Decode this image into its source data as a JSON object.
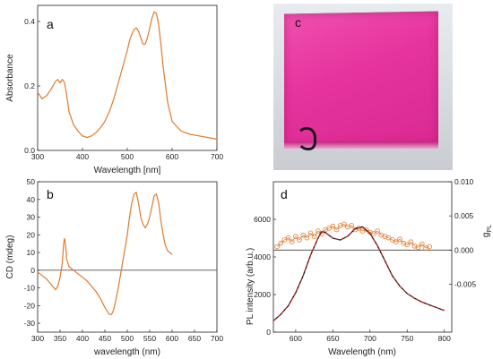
{
  "panels": {
    "a": {
      "label": "a"
    },
    "b": {
      "label": "b"
    },
    "c": {
      "label": "c"
    },
    "d": {
      "label": "d"
    }
  },
  "colors": {
    "curve": "#e07a2c",
    "pl_fit": "#d62020",
    "pl_data": "#111111",
    "zero_line": "#555555",
    "photo_film": "#e6339d"
  },
  "chart_data": [
    {
      "id": "a",
      "type": "line",
      "xlabel": "Wavelength [nm]",
      "ylabel": "Absorbance",
      "xlim": [
        300,
        700
      ],
      "ylim": [
        0.0,
        0.45
      ],
      "xticks": [
        300,
        400,
        500,
        600,
        700
      ],
      "yticks": [
        0.0,
        0.2,
        0.4
      ],
      "ytick_labels": [
        "0.0",
        "0.2",
        "0.4"
      ],
      "x": [
        300,
        310,
        320,
        330,
        340,
        345,
        350,
        355,
        360,
        365,
        370,
        380,
        390,
        400,
        410,
        420,
        430,
        440,
        450,
        460,
        470,
        480,
        490,
        500,
        505,
        510,
        515,
        520,
        525,
        530,
        535,
        540,
        545,
        550,
        555,
        560,
        565,
        570,
        575,
        580,
        590,
        600,
        620,
        640,
        660,
        680,
        700
      ],
      "y": [
        0.18,
        0.16,
        0.17,
        0.19,
        0.215,
        0.22,
        0.21,
        0.22,
        0.21,
        0.17,
        0.12,
        0.08,
        0.06,
        0.045,
        0.04,
        0.045,
        0.055,
        0.07,
        0.09,
        0.12,
        0.16,
        0.21,
        0.26,
        0.31,
        0.34,
        0.36,
        0.375,
        0.38,
        0.37,
        0.35,
        0.33,
        0.33,
        0.35,
        0.38,
        0.41,
        0.43,
        0.425,
        0.39,
        0.33,
        0.26,
        0.15,
        0.09,
        0.06,
        0.05,
        0.045,
        0.04,
        0.035
      ]
    },
    {
      "id": "b",
      "type": "line",
      "xlabel": "wavelength (nm)",
      "ylabel": "CD (mdeg)",
      "xlim": [
        300,
        700
      ],
      "ylim": [
        -35,
        50
      ],
      "xticks": [
        300,
        350,
        400,
        450,
        500,
        550,
        600,
        650,
        700
      ],
      "yticks": [
        -30,
        -20,
        -10,
        0,
        10,
        20,
        30,
        40,
        50
      ],
      "x": [
        300,
        310,
        320,
        330,
        340,
        345,
        350,
        355,
        358,
        360,
        362,
        365,
        370,
        380,
        390,
        400,
        410,
        420,
        430,
        440,
        450,
        460,
        465,
        470,
        480,
        490,
        500,
        505,
        510,
        515,
        520,
        525,
        530,
        535,
        540,
        545,
        550,
        555,
        560,
        565,
        570,
        575,
        580,
        585,
        590,
        595,
        600
      ],
      "y": [
        -1,
        -3,
        -5,
        -8,
        -11,
        -9,
        -4,
        4,
        15,
        18,
        15,
        6,
        2,
        0,
        -2,
        -4,
        -6,
        -9,
        -12,
        -16,
        -21,
        -25,
        -25,
        -22,
        -10,
        5,
        20,
        30,
        38,
        43,
        44,
        38,
        30,
        26,
        24,
        26,
        30,
        36,
        42,
        43,
        38,
        28,
        20,
        14,
        11,
        10,
        9
      ]
    },
    {
      "id": "d",
      "type": "scatter+line",
      "xlabel": "Wavelength (nm)",
      "ylabel": "PL intensity (arb.u.)",
      "ylabel_right": "g",
      "ylabel_right_sub": "PL",
      "xlim": [
        570,
        810
      ],
      "ylim": [
        0,
        8000
      ],
      "ylim_right": [
        -0.012,
        0.01
      ],
      "xticks": [
        600,
        650,
        700,
        750,
        800
      ],
      "yticks": [
        0,
        2000,
        4000,
        6000
      ],
      "yticks_right": [
        -0.005,
        0.0,
        0.005,
        0.01
      ],
      "ytick_right_labels": [
        "-0.005",
        "0.000",
        "0.005",
        "0.010"
      ],
      "pl": {
        "x": [
          570,
          580,
          590,
          600,
          610,
          620,
          630,
          635,
          640,
          650,
          660,
          670,
          680,
          690,
          700,
          710,
          720,
          730,
          740,
          750,
          760,
          770,
          780,
          790,
          800
        ],
        "y": [
          600,
          950,
          1400,
          2100,
          3000,
          4100,
          5000,
          5350,
          5300,
          5000,
          4900,
          5100,
          5500,
          5600,
          5250,
          4600,
          3800,
          3000,
          2450,
          2050,
          1800,
          1600,
          1450,
          1300,
          1150
        ]
      },
      "gpl": {
        "x": [
          575,
          580,
          585,
          590,
          595,
          600,
          605,
          610,
          615,
          620,
          625,
          630,
          635,
          640,
          645,
          650,
          655,
          660,
          665,
          670,
          675,
          680,
          685,
          690,
          695,
          700,
          705,
          710,
          715,
          720,
          725,
          730,
          735,
          740,
          745,
          750,
          755,
          760,
          765,
          770,
          775,
          780
        ],
        "y": [
          0.0005,
          0.001,
          0.0015,
          0.0018,
          0.0012,
          0.002,
          0.0015,
          0.0022,
          0.0018,
          0.0025,
          0.002,
          0.0028,
          0.0024,
          0.003,
          0.0032,
          0.0035,
          0.003,
          0.0036,
          0.0038,
          0.0034,
          0.0036,
          0.003,
          0.0032,
          0.0028,
          0.003,
          0.0026,
          0.0024,
          0.0028,
          0.0022,
          0.002,
          0.0018,
          0.0015,
          0.0012,
          0.0016,
          0.001,
          0.0008,
          0.0012,
          0.0006,
          0.0004,
          0.0009,
          0.0003,
          0.0005
        ]
      }
    }
  ]
}
